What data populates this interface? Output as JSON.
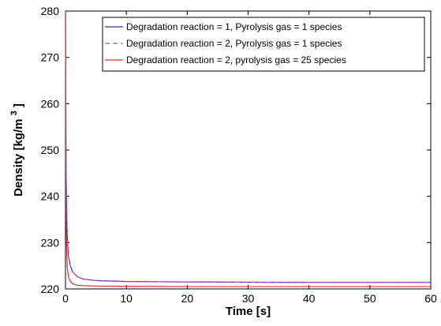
{
  "chart_data": {
    "type": "line",
    "xlabel": "Time [s]",
    "ylabel": "Density [kg/m",
    "ylabel_superscript": "3",
    "ylabel_suffix": "]",
    "xlim": [
      0,
      60
    ],
    "ylim": [
      220,
      280
    ],
    "xticks": [
      0,
      10,
      20,
      30,
      40,
      50,
      60
    ],
    "yticks": [
      220,
      230,
      240,
      250,
      260,
      270,
      280
    ],
    "grid": false,
    "legend_position": "top-right",
    "series": [
      {
        "name": "Degradation reaction = 1, Pyrolysis gas = 1 species",
        "color": "#3a2fb5",
        "dash": "solid",
        "x": [
          0,
          0.05,
          0.1,
          0.2,
          0.3,
          0.5,
          0.8,
          1.2,
          2,
          3,
          5,
          10,
          20,
          30,
          40,
          50,
          60
        ],
        "y": [
          280,
          262,
          246,
          236,
          231,
          227,
          225,
          223.6,
          222.6,
          222.1,
          221.8,
          221.6,
          221.5,
          221.45,
          221.4,
          221.4,
          221.4
        ]
      },
      {
        "name": "Degradation reaction = 2, Pyrolysis gas = 1 species",
        "color": "#c13bd8",
        "dash": "dashed",
        "x": [
          0,
          0.05,
          0.1,
          0.2,
          0.3,
          0.5,
          0.8,
          1.2,
          2,
          3,
          5,
          10,
          20,
          30,
          40,
          50,
          60
        ],
        "y": [
          280,
          262,
          246,
          236,
          231,
          227,
          225,
          223.6,
          222.6,
          222.1,
          221.8,
          221.6,
          221.5,
          221.45,
          221.4,
          221.4,
          221.4
        ]
      },
      {
        "name": "Degradation reaction = 2, pyrolysis gas = 25 species",
        "color": "#e0312b",
        "dash": "solid",
        "x": [
          0,
          0.05,
          0.1,
          0.2,
          0.3,
          0.5,
          0.8,
          1.2,
          2,
          3,
          5,
          10,
          20,
          30,
          40,
          50,
          60
        ],
        "y": [
          280,
          252,
          236,
          228,
          224.5,
          222.5,
          221.6,
          221.1,
          220.8,
          220.7,
          220.6,
          220.55,
          220.5,
          220.5,
          220.5,
          220.5,
          220.5
        ]
      }
    ]
  }
}
